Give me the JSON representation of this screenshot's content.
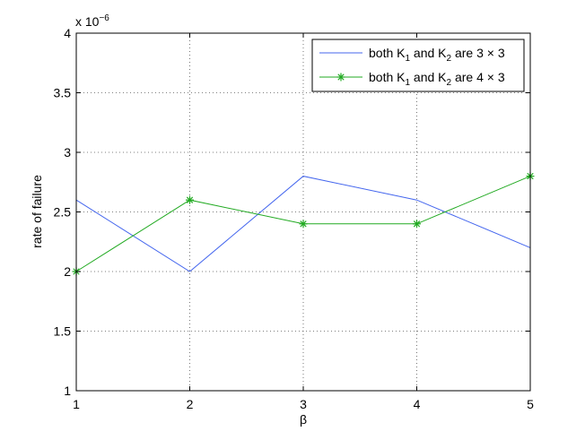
{
  "chart_data": {
    "type": "line",
    "title": "",
    "xlabel": "β",
    "ylabel": "rate of failure",
    "y_multiplier": {
      "prefix": "x 10",
      "exponent": "−6"
    },
    "xlim": [
      1,
      5
    ],
    "ylim": [
      1,
      4
    ],
    "grid": true,
    "legend_placement": "top-right",
    "x": [
      1,
      2,
      3,
      4,
      5
    ],
    "x_ticks": [
      1,
      2,
      3,
      4,
      5
    ],
    "y_ticks": [
      1,
      1.5,
      2,
      2.5,
      3,
      3.5,
      4
    ],
    "x_tick_labels": [
      "1",
      "2",
      "3",
      "4",
      "5"
    ],
    "y_tick_labels": [
      "1",
      "1.5",
      "2",
      "2.5",
      "3",
      "3.5",
      "4"
    ],
    "series": [
      {
        "label_parts": [
          "both K",
          "1",
          " and K",
          "2",
          " are 3 × 3"
        ],
        "values": [
          2.6,
          2.0,
          2.8,
          2.6,
          2.2
        ],
        "color": "#4466ee",
        "marker": "none"
      },
      {
        "label_parts": [
          "both K",
          "1",
          " and K",
          "2",
          " are 4 × 3"
        ],
        "values": [
          2.0,
          2.6,
          2.4,
          2.4,
          2.8
        ],
        "color": "#22aa22",
        "marker": "asterisk"
      }
    ]
  }
}
